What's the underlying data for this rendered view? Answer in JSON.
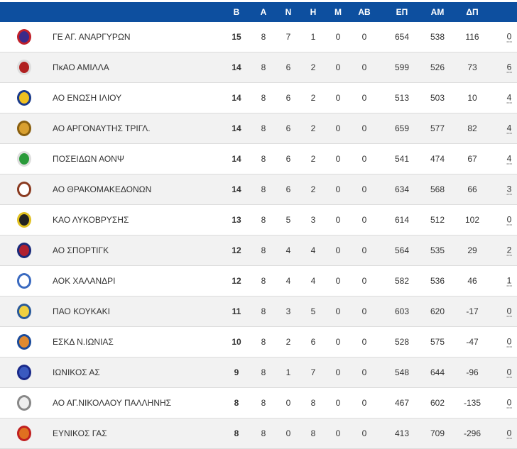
{
  "headers": [
    "Β",
    "Α",
    "Ν",
    "Η",
    "Μ",
    "ΑΒ",
    "ΕΠ",
    "ΑΜ",
    "ΔΠ"
  ],
  "rows": [
    {
      "team": "ΓΕ ΑΓ. ΑΝΑΡΓΥΡΩΝ",
      "logo": "shield-red-blue",
      "c": [
        "15",
        "8",
        "7",
        "1",
        "0",
        "0",
        "654",
        "538",
        "116"
      ],
      "pen": "0",
      "color": "#3a2a8a",
      "ring": "#c0202a"
    },
    {
      "team": "ΠκΑΟ ΑΜΙΛΛΑ",
      "logo": "circle-red",
      "c": [
        "14",
        "8",
        "6",
        "2",
        "0",
        "0",
        "599",
        "526",
        "73"
      ],
      "pen": "6",
      "color": "#b02020",
      "ring": "#ddd"
    },
    {
      "team": "ΑΟ ΕΝΩΣΗ ΙΛΙΟΥ",
      "logo": "circle-star",
      "c": [
        "14",
        "8",
        "6",
        "2",
        "0",
        "0",
        "513",
        "503",
        "10"
      ],
      "pen": "4",
      "color": "#f0c020",
      "ring": "#1a3a8a"
    },
    {
      "team": "ΑΟ ΑΡΓΟΝΑΥΤΗΣ ΤΡΙΓΛ.",
      "logo": "ball-gold",
      "c": [
        "14",
        "8",
        "6",
        "2",
        "0",
        "0",
        "659",
        "577",
        "82"
      ],
      "pen": "4",
      "color": "#d9a030",
      "ring": "#8a6010"
    },
    {
      "team": "ΠΟΣΕΙΔΩΝ ΑΟΝΨ",
      "logo": "circle-green",
      "c": [
        "14",
        "8",
        "6",
        "2",
        "0",
        "0",
        "541",
        "474",
        "67"
      ],
      "pen": "4",
      "color": "#2a9a3a",
      "ring": "#ddd"
    },
    {
      "team": "ΑΟ ΘΡΑΚΟΜΑΚΕΔΟΝΩΝ",
      "logo": "circle-brown",
      "c": [
        "14",
        "8",
        "6",
        "2",
        "0",
        "0",
        "634",
        "568",
        "66"
      ],
      "pen": "3",
      "color": "#fff",
      "ring": "#8a3a20"
    },
    {
      "team": "ΚΑΟ ΛΥΚΟΒΡΥΣΗΣ",
      "logo": "circle-yellow-black",
      "c": [
        "13",
        "8",
        "5",
        "3",
        "0",
        "0",
        "614",
        "512",
        "102"
      ],
      "pen": "0",
      "color": "#222",
      "ring": "#e0c020"
    },
    {
      "team": "ΑΟ ΣΠΟΡΤΙΓΚ",
      "logo": "shield-blue-red",
      "c": [
        "12",
        "8",
        "4",
        "4",
        "0",
        "0",
        "564",
        "535",
        "29"
      ],
      "pen": "2",
      "color": "#b02030",
      "ring": "#1a2a7a"
    },
    {
      "team": "ΑΟΚ ΧΑΛΑΝΔΡΙ",
      "logo": "crest-blue",
      "c": [
        "12",
        "8",
        "4",
        "4",
        "0",
        "0",
        "582",
        "536",
        "46"
      ],
      "pen": "1",
      "color": "#fff",
      "ring": "#3a6ac0"
    },
    {
      "team": "ΠΑΟ ΚΟΥΚΑΚΙ",
      "logo": "shield-yellow",
      "c": [
        "11",
        "8",
        "3",
        "5",
        "0",
        "0",
        "603",
        "620",
        "-17"
      ],
      "pen": "0",
      "color": "#f0d040",
      "ring": "#2a5a9a"
    },
    {
      "team": "ΕΣΚΔ Ν.ΙΩΝΙΑΣ",
      "logo": "circle-blue-orange",
      "c": [
        "10",
        "8",
        "2",
        "6",
        "0",
        "0",
        "528",
        "575",
        "-47"
      ],
      "pen": "0",
      "color": "#e08a30",
      "ring": "#1a4a9a"
    },
    {
      "team": "ΙΩΝΙΚΟΣ ΑΣ",
      "logo": "shield-blue",
      "c": [
        "9",
        "8",
        "1",
        "7",
        "0",
        "0",
        "548",
        "644",
        "-96"
      ],
      "pen": "0",
      "color": "#3a5ac0",
      "ring": "#1a2a8a"
    },
    {
      "team": "ΑΟ ΑΓ.ΝΙΚΟΛΑΟΥ ΠΑΛΛΗΝΗΣ",
      "logo": "crest-grey",
      "c": [
        "8",
        "8",
        "0",
        "8",
        "0",
        "0",
        "467",
        "602",
        "-135"
      ],
      "pen": "0",
      "color": "#eee",
      "ring": "#888"
    },
    {
      "team": "ΕΥΝΙΚΟΣ ΓΑΣ",
      "logo": "circle-orange",
      "c": [
        "8",
        "8",
        "0",
        "8",
        "0",
        "0",
        "413",
        "709",
        "-296"
      ],
      "pen": "0",
      "color": "#e07020",
      "ring": "#c02020"
    }
  ]
}
